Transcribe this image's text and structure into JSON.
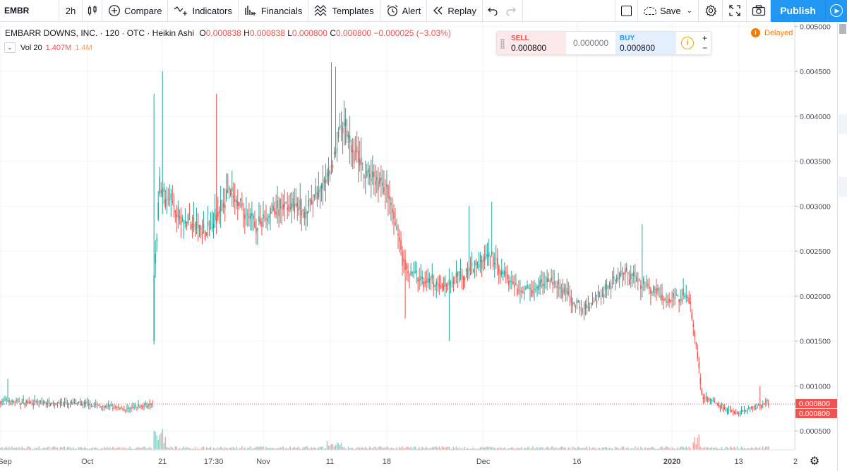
{
  "toolbar": {
    "symbol": "EMBR",
    "interval": "2h",
    "compare": "Compare",
    "indicators": "Indicators",
    "financials": "Financials",
    "templates": "Templates",
    "alert": "Alert",
    "replay": "Replay",
    "save": "Save",
    "publish": "Publish",
    "icons": {
      "bar_style": "candles-icon",
      "compare": "plus-circle-icon",
      "indicators": "indicators-icon",
      "financials": "financials-icon",
      "templates": "templates-icon",
      "alert": "alarm-clock-icon",
      "replay": "rewind-icon",
      "undo": "undo-icon",
      "redo": "redo-icon",
      "settings": "gear-icon",
      "fullscreen": "fullscreen-icon",
      "snapshot": "camera-icon"
    }
  },
  "legend": {
    "title": "EMBARR DOWNS, INC. · 120 · OTC · Heikin Ashi",
    "o_label": "O",
    "o": "0.000838",
    "h_label": "H",
    "h": "0.000838",
    "l_label": "L",
    "l": "0.000800",
    "c_label": "C",
    "c": "0.000800",
    "change": "−0.000025 (−3.03%)",
    "volume_label": "Vol 20",
    "volume_value": "1.407M",
    "volume_ma": "1.4M"
  },
  "trade": {
    "sell_label": "SELL",
    "sell_price": "0.000800",
    "spread": "0.000000",
    "buy_label": "BUY",
    "buy_price": "0.000800",
    "plus": "+",
    "minus": "−"
  },
  "status": {
    "delayed": "Delayed"
  },
  "colors": {
    "up": "#26a69a",
    "down": "#ef5350",
    "vol_up": "#8fd3cc",
    "vol_down": "#f5a9a7",
    "price_line": "#ef5350",
    "grid": "#f0f3fa",
    "accent": "#2196f3"
  },
  "chart_data": {
    "type": "candlestick",
    "style": "Heikin Ashi",
    "grid": true,
    "ylim": [
      0.00029,
      0.00505
    ],
    "y_ticks": [
      "0.005000",
      "0.004500",
      "0.004000",
      "0.003500",
      "0.003000",
      "0.002500",
      "0.002000",
      "0.001500",
      "0.001000",
      "0.000500"
    ],
    "x_ticks": [
      "Sep",
      "Oct",
      "21",
      "17:30",
      "Nov",
      "11",
      "18",
      "Dec",
      "16",
      "2020",
      "13",
      "2"
    ],
    "x_tick_index": [
      0,
      61,
      114,
      150,
      185,
      232,
      272,
      340,
      406,
      473,
      520,
      560
    ],
    "n_bars": 560,
    "last_price_labels": [
      "0.000800",
      "0.000800"
    ],
    "last_price": 0.0008,
    "segments": [
      {
        "to": 0,
        "price": 0.00083
      },
      {
        "to": 60,
        "price": 0.0008
      },
      {
        "to": 90,
        "price": 0.00074
      },
      {
        "to": 105,
        "price": 0.0008
      },
      {
        "to": 107,
        "price": 0.0008
      },
      {
        "to": 108,
        "price": 0.00225
      },
      {
        "to": 112,
        "price": 0.0032
      },
      {
        "to": 125,
        "price": 0.0029
      },
      {
        "to": 145,
        "price": 0.0027
      },
      {
        "to": 160,
        "price": 0.00315
      },
      {
        "to": 180,
        "price": 0.0028
      },
      {
        "to": 200,
        "price": 0.003
      },
      {
        "to": 215,
        "price": 0.00295
      },
      {
        "to": 232,
        "price": 0.00335
      },
      {
        "to": 240,
        "price": 0.004
      },
      {
        "to": 255,
        "price": 0.0034
      },
      {
        "to": 272,
        "price": 0.0032
      },
      {
        "to": 285,
        "price": 0.0023
      },
      {
        "to": 310,
        "price": 0.0021
      },
      {
        "to": 330,
        "price": 0.0023
      },
      {
        "to": 345,
        "price": 0.00245
      },
      {
        "to": 365,
        "price": 0.00205
      },
      {
        "to": 390,
        "price": 0.00215
      },
      {
        "to": 410,
        "price": 0.00185
      },
      {
        "to": 440,
        "price": 0.00225
      },
      {
        "to": 470,
        "price": 0.00195
      },
      {
        "to": 484,
        "price": 0.002
      },
      {
        "to": 488,
        "price": 0.0017
      },
      {
        "to": 494,
        "price": 0.0009
      },
      {
        "to": 510,
        "price": 0.00075
      },
      {
        "to": 520,
        "price": 0.0007
      },
      {
        "to": 540,
        "price": 0.00082
      },
      {
        "to": 541,
        "price": 0.0008
      }
    ],
    "spikes": [
      {
        "i": 114,
        "high": 0.0045
      },
      {
        "i": 108,
        "high": 0.00425
      },
      {
        "i": 152,
        "high": 0.00425
      },
      {
        "i": 233,
        "high": 0.0046
      },
      {
        "i": 236,
        "high": 0.00455
      },
      {
        "i": 330,
        "high": 0.003
      },
      {
        "i": 346,
        "high": 0.00305
      },
      {
        "i": 452,
        "high": 0.0028
      },
      {
        "i": 535,
        "high": 0.001
      },
      {
        "i": 5,
        "high": 0.00108
      }
    ],
    "dips": [
      {
        "i": 316,
        "low": 0.0015
      },
      {
        "i": 285,
        "low": 0.00175
      }
    ]
  }
}
